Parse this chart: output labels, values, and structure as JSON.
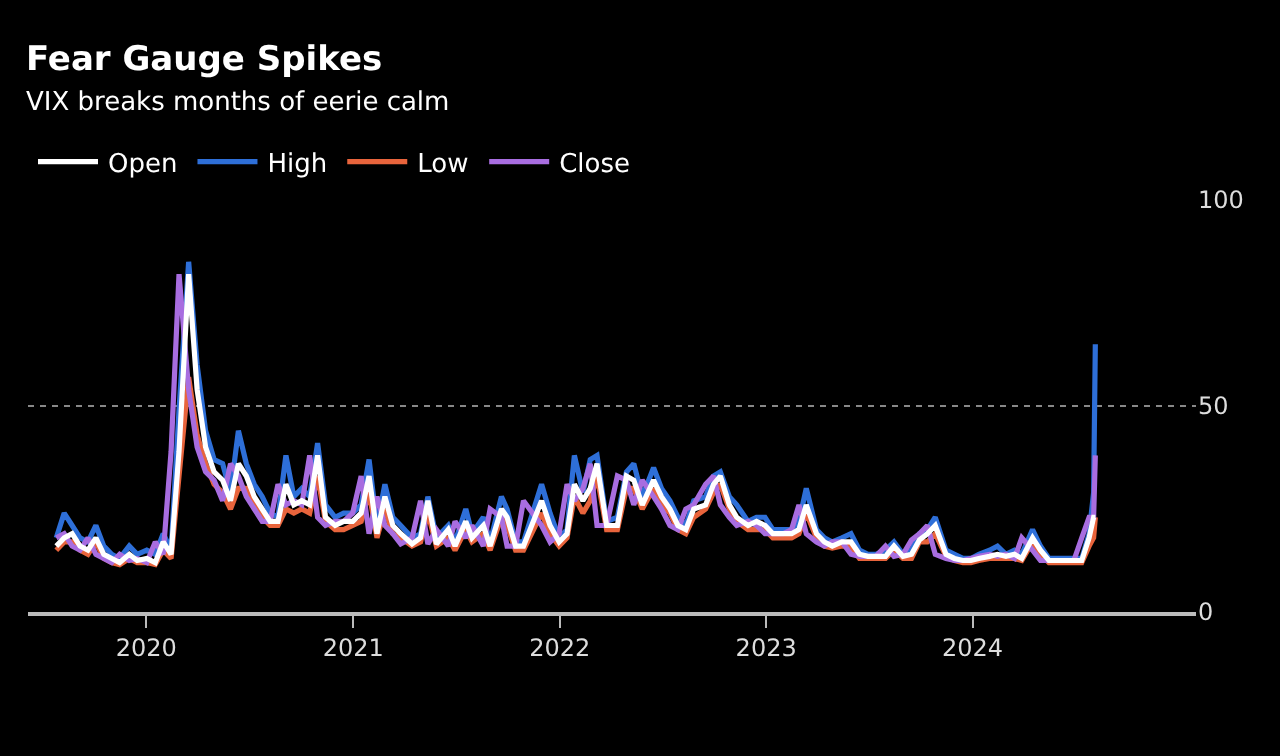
{
  "chart_data": {
    "type": "line",
    "title": "Fear Gauge Spikes",
    "subtitle": "VIX breaks months of eerie calm",
    "x": [
      "2019-07-26",
      "2019-08-09",
      "2019-08-23",
      "2019-09-06",
      "2019-09-20",
      "2019-10-04",
      "2019-10-18",
      "2019-11-01",
      "2019-11-15",
      "2019-12-02",
      "2019-12-16",
      "2020-01-02",
      "2020-01-17",
      "2020-01-31",
      "2020-02-14",
      "2020-02-28",
      "2020-03-16",
      "2020-03-31",
      "2020-04-15",
      "2020-04-30",
      "2020-05-15",
      "2020-05-29",
      "2020-06-12",
      "2020-06-26",
      "2020-07-10",
      "2020-07-24",
      "2020-08-07",
      "2020-08-21",
      "2020-09-04",
      "2020-09-18",
      "2020-10-02",
      "2020-10-16",
      "2020-10-30",
      "2020-11-13",
      "2020-11-30",
      "2020-12-15",
      "2020-12-31",
      "2021-01-15",
      "2021-01-29",
      "2021-02-12",
      "2021-02-26",
      "2021-03-12",
      "2021-03-26",
      "2021-04-15",
      "2021-04-30",
      "2021-05-13",
      "2021-05-28",
      "2021-06-18",
      "2021-06-30",
      "2021-07-19",
      "2021-07-30",
      "2021-08-19",
      "2021-08-31",
      "2021-09-20",
      "2021-09-30",
      "2021-10-15",
      "2021-10-29",
      "2021-11-30",
      "2021-12-15",
      "2021-12-31",
      "2022-01-14",
      "2022-01-27",
      "2022-02-11",
      "2022-02-24",
      "2022-03-08",
      "2022-03-25",
      "2022-04-13",
      "2022-04-29",
      "2022-05-12",
      "2022-05-27",
      "2022-06-16",
      "2022-06-30",
      "2022-07-15",
      "2022-07-29",
      "2022-08-12",
      "2022-08-26",
      "2022-09-16",
      "2022-09-30",
      "2022-10-12",
      "2022-10-28",
      "2022-11-10",
      "2022-11-30",
      "2022-12-15",
      "2022-12-30",
      "2023-01-13",
      "2023-01-31",
      "2023-02-15",
      "2023-02-28",
      "2023-03-13",
      "2023-03-31",
      "2023-04-14",
      "2023-04-28",
      "2023-05-15",
      "2023-05-31",
      "2023-06-15",
      "2023-06-30",
      "2023-07-14",
      "2023-07-31",
      "2023-08-15",
      "2023-08-31",
      "2023-09-15",
      "2023-09-29",
      "2023-10-13",
      "2023-10-27",
      "2023-11-15",
      "2023-11-30",
      "2023-12-15",
      "2023-12-29",
      "2024-01-12",
      "2024-01-31",
      "2024-02-14",
      "2024-02-29",
      "2024-03-15",
      "2024-03-28",
      "2024-04-16",
      "2024-04-30",
      "2024-05-15",
      "2024-05-31",
      "2024-06-14",
      "2024-06-28",
      "2024-07-12",
      "2024-07-25",
      "2024-08-02",
      "2024-08-05"
    ],
    "series": [
      {
        "name": "Open",
        "color": "#ffffff",
        "values": [
          16,
          18,
          19,
          16,
          15,
          18,
          14,
          13,
          12,
          14,
          12.5,
          13,
          12,
          17,
          14,
          39,
          82,
          54,
          40,
          34,
          32,
          27,
          36,
          33,
          28,
          25,
          22,
          22,
          31,
          26,
          27,
          26,
          38,
          23,
          21,
          22,
          22,
          24,
          33,
          19,
          28,
          21,
          19,
          16.5,
          18,
          27,
          16.5,
          20,
          16,
          22,
          18,
          21,
          16,
          25,
          23,
          16,
          16,
          27,
          21,
          17,
          19,
          31,
          27,
          30,
          36,
          21,
          21,
          33,
          32,
          26,
          32,
          28,
          25,
          21,
          20,
          25,
          26,
          31,
          33,
          26,
          23,
          21,
          22,
          21,
          19,
          19,
          19,
          20,
          26,
          19,
          17,
          16,
          17,
          17,
          14,
          13.5,
          13.5,
          13.5,
          16,
          13.5,
          14,
          17.5,
          19,
          21,
          14,
          13,
          12.5,
          12.5,
          13,
          13.5,
          14,
          13.5,
          14,
          13,
          18,
          15,
          12.5,
          12.5,
          12.5,
          12.5,
          12.5,
          18,
          23,
          23
        ]
      },
      {
        "name": "High",
        "color": "#2e6fd8",
        "values": [
          18,
          24,
          21,
          18,
          17,
          21,
          16,
          14,
          13,
          16,
          14,
          15,
          14,
          19,
          15,
          49,
          85,
          60,
          44,
          37,
          36,
          29,
          44,
          36,
          31,
          28,
          24,
          23,
          38,
          28,
          30,
          28,
          41,
          26,
          23,
          24,
          24,
          26,
          37,
          21,
          31,
          23,
          21,
          18,
          19,
          28,
          18,
          21,
          17,
          25,
          19,
          23,
          17,
          28,
          25,
          17,
          17,
          31,
          24,
          18,
          20,
          38,
          29,
          37,
          38,
          22,
          23,
          34,
          36,
          28,
          35,
          30,
          27,
          23,
          21,
          27,
          28,
          33,
          34,
          28,
          26,
          22,
          23,
          23,
          20,
          20,
          20,
          22,
          30,
          20,
          18,
          17,
          18,
          19,
          15,
          14,
          14,
          15,
          17,
          14,
          15,
          19,
          20,
          23,
          15,
          14,
          13,
          13,
          14,
          15,
          16,
          14,
          15,
          14,
          20,
          16,
          13,
          13,
          13,
          13,
          13,
          19,
          29,
          65
        ]
      },
      {
        "name": "Low",
        "color": "#e8643c",
        "values": [
          15,
          17,
          17,
          15,
          14,
          17,
          13,
          12,
          11.5,
          13,
          12,
          12,
          11.5,
          15,
          13,
          33,
          57,
          43,
          36,
          31,
          29,
          25,
          30,
          30,
          26,
          23,
          21,
          21,
          25,
          24,
          25,
          24,
          33,
          22,
          20,
          20,
          21,
          22,
          29,
          18,
          25,
          19,
          18,
          16,
          17,
          24,
          16,
          18,
          15,
          20,
          17,
          19,
          15,
          23,
          21,
          15,
          15,
          24,
          19,
          16,
          18,
          28,
          24,
          27,
          33,
          20,
          20,
          30,
          30,
          25,
          30,
          26,
          24,
          20,
          19,
          23,
          25,
          29,
          31,
          25,
          22,
          20,
          20,
          20,
          18,
          18,
          18,
          19,
          24,
          18,
          16,
          15.5,
          16,
          16,
          13,
          13,
          13,
          13,
          15,
          13,
          13,
          17,
          17,
          19,
          13.5,
          12.5,
          12,
          12,
          12.5,
          13,
          13,
          13,
          13,
          12.5,
          17,
          14,
          12,
          12,
          12,
          12,
          12,
          16,
          18,
          23
        ]
      },
      {
        "name": "Close",
        "color": "#a86de0",
        "values": [
          18,
          19,
          16,
          15,
          18,
          14,
          13,
          12,
          14,
          12.5,
          13,
          12,
          17,
          14,
          39,
          82,
          54,
          40,
          34,
          32,
          27,
          36,
          33,
          28,
          25,
          22,
          22,
          31,
          26,
          27,
          26,
          38,
          23,
          21,
          22,
          22,
          24,
          33,
          19,
          28,
          21,
          19,
          16.5,
          18,
          27,
          16.5,
          20,
          16,
          22,
          18,
          21,
          16,
          25,
          23,
          16,
          16,
          27,
          21,
          17,
          19,
          31,
          27,
          30,
          36,
          21,
          21,
          33,
          32,
          26,
          32,
          28,
          25,
          21,
          20,
          25,
          26,
          31,
          33,
          26,
          23,
          21,
          22,
          21,
          19,
          19,
          19,
          20,
          26,
          19,
          17,
          16,
          17,
          17,
          14,
          13.5,
          13.5,
          13.5,
          16,
          13.5,
          14,
          17.5,
          19,
          21,
          14,
          13,
          12.5,
          12.5,
          13,
          13.5,
          14,
          13.5,
          14,
          13,
          18,
          15,
          12.5,
          12.5,
          12.5,
          12.5,
          12.5,
          18,
          23,
          23,
          38
        ]
      }
    ],
    "xlim": [
      "2019-06-06",
      "2025-01-30"
    ],
    "xticks": [
      "2020",
      "2021",
      "2022",
      "2023",
      "2024"
    ],
    "ylim": [
      0,
      100
    ],
    "yticks": [
      0,
      50,
      100
    ],
    "grid": "y",
    "legend": "top left",
    "line_style": "solid"
  }
}
